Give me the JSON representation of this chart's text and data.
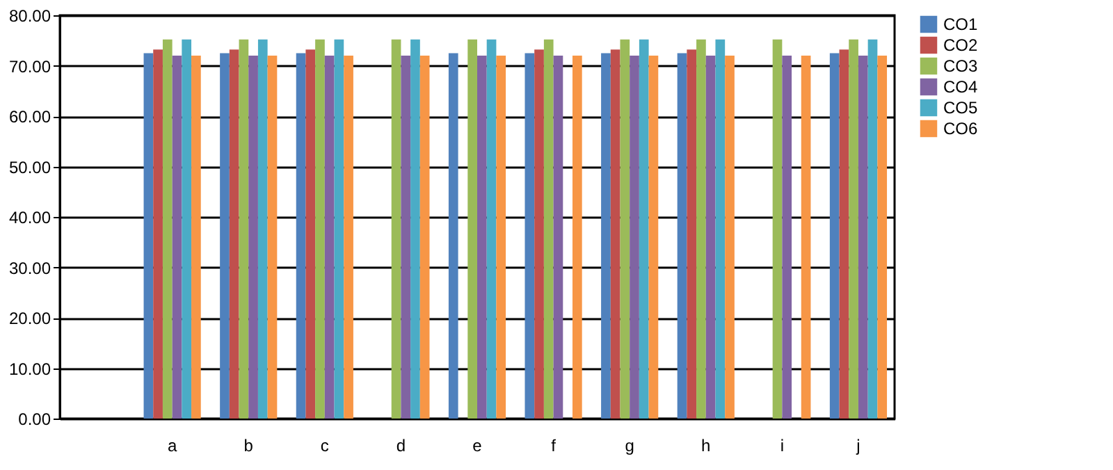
{
  "chart_data": {
    "type": "bar",
    "categories": [
      null,
      "a",
      "b",
      "c",
      "d",
      "e",
      "f",
      "g",
      "h",
      "i",
      "j"
    ],
    "series": [
      {
        "name": "CO1",
        "color": "#4f81bd",
        "values": [
          null,
          72.5,
          72.5,
          72.5,
          null,
          72.5,
          72.5,
          72.5,
          72.5,
          null,
          72.5
        ]
      },
      {
        "name": "CO2",
        "color": "#c0504d",
        "values": [
          null,
          73.2,
          73.2,
          73.2,
          null,
          null,
          73.2,
          73.2,
          73.2,
          null,
          73.2
        ]
      },
      {
        "name": "CO3",
        "color": "#9bbb59",
        "values": [
          null,
          75.2,
          75.2,
          75.2,
          75.2,
          75.2,
          75.2,
          75.2,
          75.2,
          75.2,
          75.2
        ]
      },
      {
        "name": "CO4",
        "color": "#8064a2",
        "values": [
          null,
          72.0,
          72.0,
          72.0,
          72.0,
          72.0,
          72.0,
          72.0,
          72.0,
          72.0,
          72.0
        ]
      },
      {
        "name": "CO5",
        "color": "#4bacc6",
        "values": [
          null,
          75.2,
          75.2,
          75.2,
          75.2,
          75.2,
          null,
          75.2,
          75.2,
          null,
          75.2
        ]
      },
      {
        "name": "CO6",
        "color": "#f79646",
        "values": [
          null,
          72.0,
          72.0,
          72.0,
          72.0,
          72.0,
          72.0,
          72.0,
          72.0,
          72.0,
          72.0
        ]
      }
    ],
    "ylim": [
      0,
      80
    ],
    "yticks": [
      {
        "value": 0,
        "label": "0.00"
      },
      {
        "value": 10,
        "label": "10.00"
      },
      {
        "value": 20,
        "label": "20.00"
      },
      {
        "value": 30,
        "label": "30.00"
      },
      {
        "value": 40,
        "label": "40.00"
      },
      {
        "value": 50,
        "label": "50.00"
      },
      {
        "value": 60,
        "label": "60.00"
      },
      {
        "value": 70,
        "label": "70.00"
      },
      {
        "value": 80,
        "label": "80.00"
      }
    ],
    "grid": "y",
    "legend": "right"
  }
}
